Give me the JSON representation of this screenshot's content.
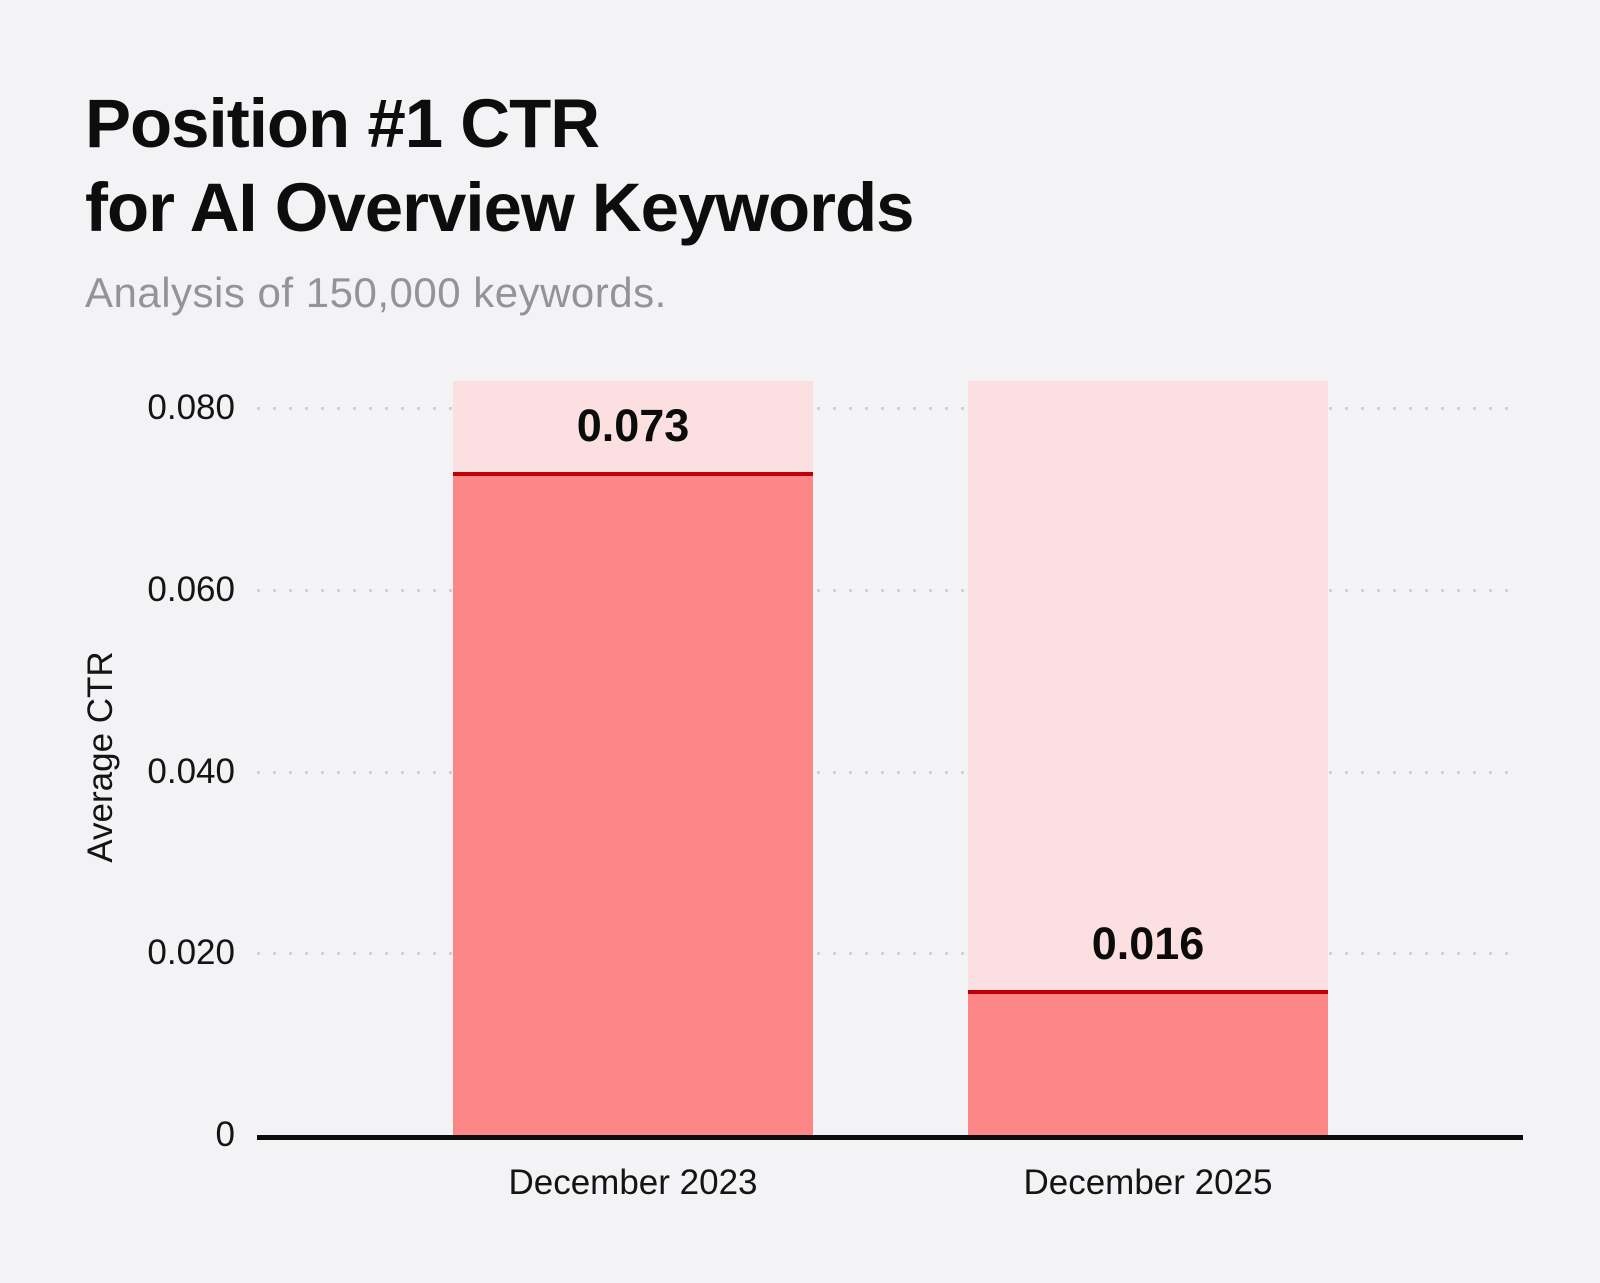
{
  "header": {
    "title_line1": "Position #1 CTR",
    "title_line2": "for AI Overview Keywords",
    "subtitle": "Analysis of 150,000 keywords."
  },
  "chart_data": {
    "type": "bar",
    "title": "Position #1 CTR for AI Overview Keywords",
    "subtitle": "Analysis of 150,000 keywords.",
    "categories": [
      "December 2023",
      "December 2025"
    ],
    "values": [
      0.073,
      0.016
    ],
    "value_labels": [
      "0.073",
      "0.016"
    ],
    "xlabel": "",
    "ylabel": "Average CTR",
    "ylim": [
      0,
      0.083
    ],
    "yticks": [
      {
        "value": 0,
        "label": "0"
      },
      {
        "value": 0.02,
        "label": "0.020"
      },
      {
        "value": 0.04,
        "label": "0.040"
      },
      {
        "value": 0.06,
        "label": "0.060"
      },
      {
        "value": 0.08,
        "label": "0.080"
      }
    ],
    "grid": "dotted-horizontal",
    "legend": "none",
    "colors": {
      "background": "#f3f3f5",
      "bar_background_column": "#fcdfe1",
      "bar_fill": "#fd8686",
      "bar_top_line": "#c10006",
      "grid_dot": "#d2d2d5",
      "axis_line": "#0c0c0c",
      "text": "#141414",
      "subtitle_text": "#949497"
    }
  }
}
